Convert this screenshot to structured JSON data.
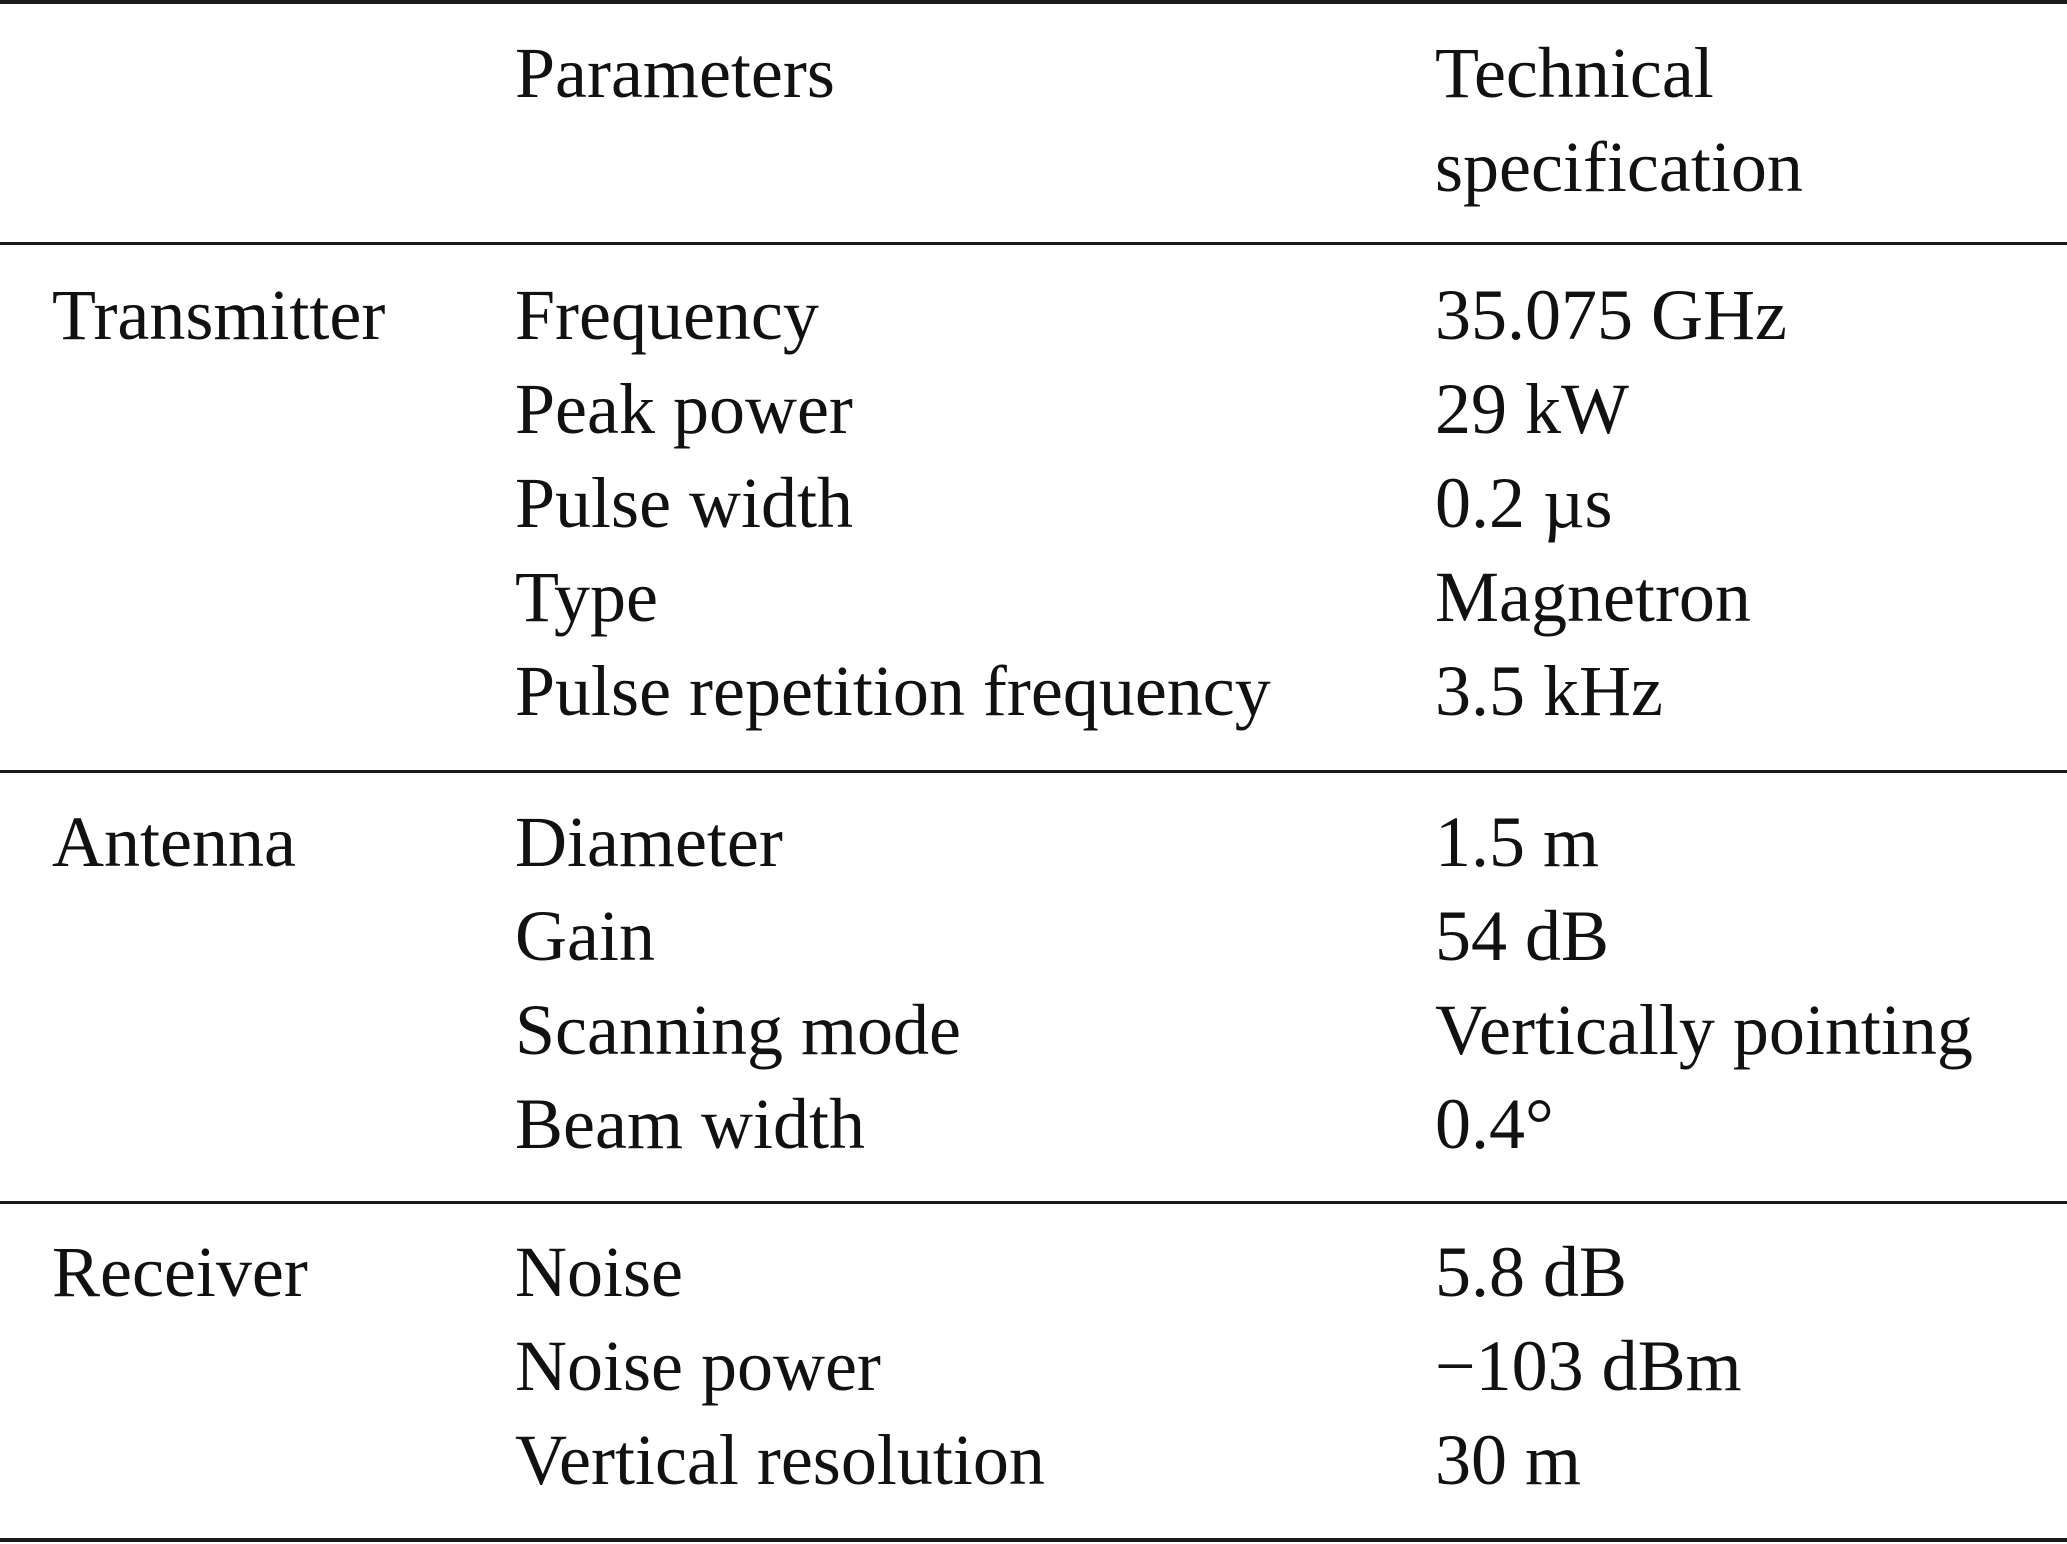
{
  "table": {
    "headers": {
      "group": "",
      "parameter": "Parameters",
      "spec_line1": "Technical",
      "spec_line2": "specification"
    },
    "sections": [
      {
        "name": "Transmitter",
        "rows": [
          {
            "parameter": "Frequency",
            "value": "35.075 GHz"
          },
          {
            "parameter": "Peak power",
            "value": "29 kW"
          },
          {
            "parameter": "Pulse width",
            "value": "0.2 µs"
          },
          {
            "parameter": "Type",
            "value": "Magnetron"
          },
          {
            "parameter": "Pulse repetition frequency",
            "value": "3.5 kHz"
          }
        ]
      },
      {
        "name": "Antenna",
        "rows": [
          {
            "parameter": "Diameter",
            "value": "1.5 m"
          },
          {
            "parameter": "Gain",
            "value": "54 dB"
          },
          {
            "parameter": "Scanning mode",
            "value": "Vertically pointing"
          },
          {
            "parameter": "Beam width",
            "value": "0.4°"
          }
        ]
      },
      {
        "name": "Receiver",
        "rows": [
          {
            "parameter": "Noise",
            "value": "5.8 dB"
          },
          {
            "parameter": "Noise power",
            "value": "−103 dBm"
          },
          {
            "parameter": "Vertical resolution",
            "value": "30 m"
          }
        ]
      }
    ]
  }
}
